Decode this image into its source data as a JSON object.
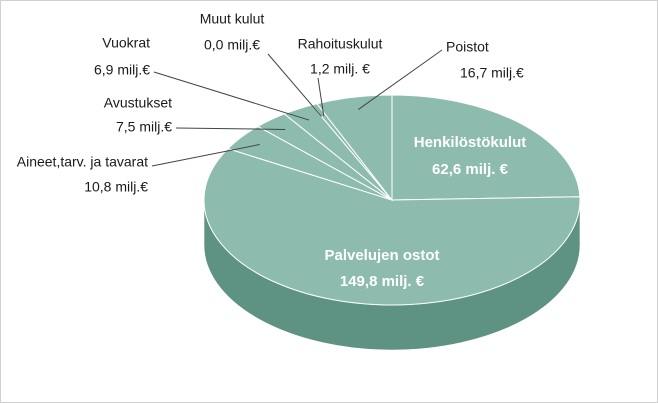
{
  "chart_data": {
    "type": "pie",
    "categories": [
      "Henkilöstökulut",
      "Palvelujen ostot",
      "Aineet,tarv. ja tavarat",
      "Avustukset",
      "Vuokrat",
      "Muut kulut",
      "Rahoituskulut",
      "Poistot"
    ],
    "values": [
      62.6,
      149.8,
      10.8,
      7.5,
      6.9,
      0.0,
      1.2,
      16.7
    ],
    "value_labels": [
      "62,6 milj. €",
      "149,8 milj. €",
      "10,8 milj.€",
      "7,5 milj.€",
      "6,9 milj.€",
      "0,0 milj.€",
      "1,2 milj. €",
      "16,7 milj.€"
    ],
    "color": "#8dbcaf"
  }
}
